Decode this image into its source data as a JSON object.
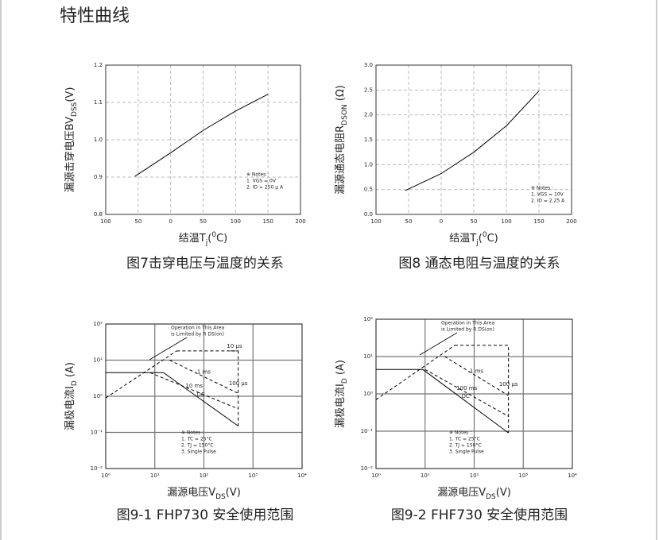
{
  "title": "特性曲线",
  "chart_data": [
    {
      "type": "line",
      "caption": "图7击穿电压与温度的关系",
      "y_label": [
        {
          "text": "漏源击穿电压BV"
        },
        {
          "text": "DSS",
          "shift": "sub"
        },
        {
          "text": "(V)"
        }
      ],
      "x_label": [
        {
          "text": "结温T"
        },
        {
          "text": "j",
          "shift": "sub"
        },
        {
          "text": "("
        },
        {
          "text": "0",
          "shift": "super"
        },
        {
          "text": "C)"
        }
      ],
      "xlim": [
        -100,
        200
      ],
      "xticks": [
        {
          "value": -100,
          "label": "100"
        },
        {
          "value": -50,
          "label": "50"
        },
        0,
        50,
        100,
        150,
        200
      ],
      "ylim": [
        0.8,
        1.2
      ],
      "yticks": [
        0.8,
        0.9,
        {
          "value": 1,
          "label": "1.0"
        },
        1.1,
        1.2
      ],
      "log": false,
      "grid": "dashed",
      "series": [
        {
          "color": "#000000",
          "x": [
            -55,
            0,
            25,
            50,
            100,
            150
          ],
          "values": [
            0.902,
            0.965,
            0.995,
            1.025,
            1.077,
            1.122
          ]
        }
      ],
      "notes": [
        "※ Notes :",
        "1. VGS = 0V",
        "2. ID = 250 μ A"
      ]
    },
    {
      "type": "line",
      "caption": "图8 通态电阻与温度的关系",
      "y_label": [
        {
          "text": "漏源通态电阻R"
        },
        {
          "text": "DSON",
          "shift": "sub"
        },
        {
          "text": " (Ω)"
        }
      ],
      "x_label": [
        {
          "text": "结温T"
        },
        {
          "text": "j",
          "shift": "sub"
        },
        {
          "text": "("
        },
        {
          "text": "0",
          "shift": "super"
        },
        {
          "text": "C)"
        }
      ],
      "xlim": [
        -100,
        200
      ],
      "xticks": [
        {
          "value": -100,
          "label": "100"
        },
        {
          "value": -50,
          "label": "50"
        },
        0,
        50,
        100,
        150,
        200
      ],
      "ylim": [
        0,
        3
      ],
      "yticks": [
        {
          "value": 0,
          "label": "0.0"
        },
        0.5,
        {
          "value": 1,
          "label": "1.0"
        },
        1.5,
        {
          "value": 2,
          "label": "2.0"
        },
        2.5,
        {
          "value": 3,
          "label": "3.0"
        }
      ],
      "log": false,
      "grid": "dashed",
      "series": [
        {
          "color": "#000000",
          "x": [
            -55,
            0,
            50,
            100,
            150
          ],
          "values": [
            0.48,
            0.82,
            1.25,
            1.78,
            2.48
          ]
        }
      ],
      "notes": [
        "※ Notes :",
        "1. VGS = 10V",
        "2. ID = 2.25 A"
      ]
    },
    {
      "type": "line",
      "caption": "图9-1 FHP730 安全使用范围",
      "y_label": [
        {
          "text": "漏极电流I"
        },
        {
          "text": "D",
          "shift": "sub"
        },
        {
          "text": " (A)"
        }
      ],
      "x_label": [
        {
          "text": "漏源电压V"
        },
        {
          "text": "DS",
          "shift": "sub"
        },
        {
          "text": "(V)"
        }
      ],
      "xlim": [
        1,
        10000
      ],
      "xticks": [
        {
          "value": 1,
          "label": "10⁰"
        },
        {
          "value": 10,
          "label": "10¹"
        },
        {
          "value": 100,
          "label": "10²"
        },
        {
          "value": 1000,
          "label": "10³"
        },
        {
          "value": 10000,
          "label": "10⁴"
        }
      ],
      "ylim": [
        0.01,
        100
      ],
      "yticks": [
        {
          "value": 0.01,
          "label": "10⁻²"
        },
        {
          "value": 0.1,
          "label": "10⁻¹"
        },
        {
          "value": 1,
          "label": "10⁰"
        },
        {
          "value": 10,
          "label": "10¹"
        },
        {
          "value": 100,
          "label": "10²"
        }
      ],
      "log": true,
      "grid": "solid",
      "series": [
        {
          "name": "DC",
          "color": "#000000",
          "x": [
            1,
            15,
            500
          ],
          "values": [
            4.5,
            4.5,
            0.15
          ]
        },
        {
          "name": "10 ms",
          "color": "#000000",
          "dash": true,
          "x": [
            8,
            500
          ],
          "values": [
            4.5,
            0.45
          ]
        },
        {
          "name": "1 ms",
          "color": "#000000",
          "dash": true,
          "x": [
            20,
            500
          ],
          "values": [
            10,
            1.2
          ]
        },
        {
          "name": "100 μs",
          "color": "#000000",
          "dash": true,
          "x": [
            28,
            500,
            500
          ],
          "values": [
            18,
            18,
            0.15
          ]
        },
        {
          "name": "10 μs",
          "color": "#000000",
          "dash": true,
          "x": [
            350,
            500
          ],
          "values": [
            18,
            18
          ]
        }
      ],
      "limit_line": {
        "x": [
          1,
          28
        ],
        "values": [
          0.9,
          18
        ]
      },
      "annotation": [
        "Operation in This Area",
        "is Limited by R DS(on)"
      ],
      "notes": [
        "※ Notes :",
        "1. TC = 25°C",
        "2. TJ = 150°C",
        "3. Single Pulse"
      ]
    },
    {
      "type": "line",
      "caption": "图9-2 FHF730 安全使用范围",
      "y_label": [
        {
          "text": "漏极电流I"
        },
        {
          "text": "D",
          "shift": "sub"
        },
        {
          "text": " (A)"
        }
      ],
      "x_label": [
        {
          "text": "漏源电压V"
        },
        {
          "text": "DS",
          "shift": "sub"
        },
        {
          "text": "(V)"
        }
      ],
      "xlim": [
        1,
        10000
      ],
      "xticks": [
        {
          "value": 1,
          "label": "10⁰"
        },
        {
          "value": 10,
          "label": "10¹"
        },
        {
          "value": 100,
          "label": "10²"
        },
        {
          "value": 1000,
          "label": "10³"
        },
        {
          "value": 10000,
          "label": "10⁴"
        }
      ],
      "ylim": [
        0.01,
        100
      ],
      "yticks": [
        {
          "value": 0.01,
          "label": "10⁻²"
        },
        {
          "value": 0.1,
          "label": "10⁻¹"
        },
        {
          "value": 1,
          "label": "10⁰"
        },
        {
          "value": 10,
          "label": "10¹"
        },
        {
          "value": 100,
          "label": "10²"
        }
      ],
      "log": true,
      "grid": "solid",
      "series": [
        {
          "name": "DC",
          "color": "#000000",
          "x": [
            1,
            9,
            500
          ],
          "values": [
            4.5,
            4.5,
            0.09
          ]
        },
        {
          "name": "100 ms",
          "color": "#000000",
          "dash": true,
          "x": [
            10,
            500
          ],
          "values": [
            4.5,
            0.25
          ]
        },
        {
          "name": "1 ms",
          "color": "#000000",
          "dash": true,
          "x": [
            25,
            500
          ],
          "values": [
            10,
            0.9
          ]
        },
        {
          "name": "100 μs",
          "color": "#000000",
          "dash": true,
          "x": [
            40,
            500,
            500
          ],
          "values": [
            20,
            20,
            0.09
          ]
        }
      ],
      "limit_line": {
        "x": [
          1,
          40
        ],
        "values": [
          0.7,
          20
        ]
      },
      "annotation": [
        "Operation in This Area",
        "is Limited by R DS(on)"
      ],
      "notes": [
        "※ Notes :",
        "1. TC = 25°C",
        "2. TJ = 150°C",
        "3. Single Pulse"
      ]
    }
  ]
}
